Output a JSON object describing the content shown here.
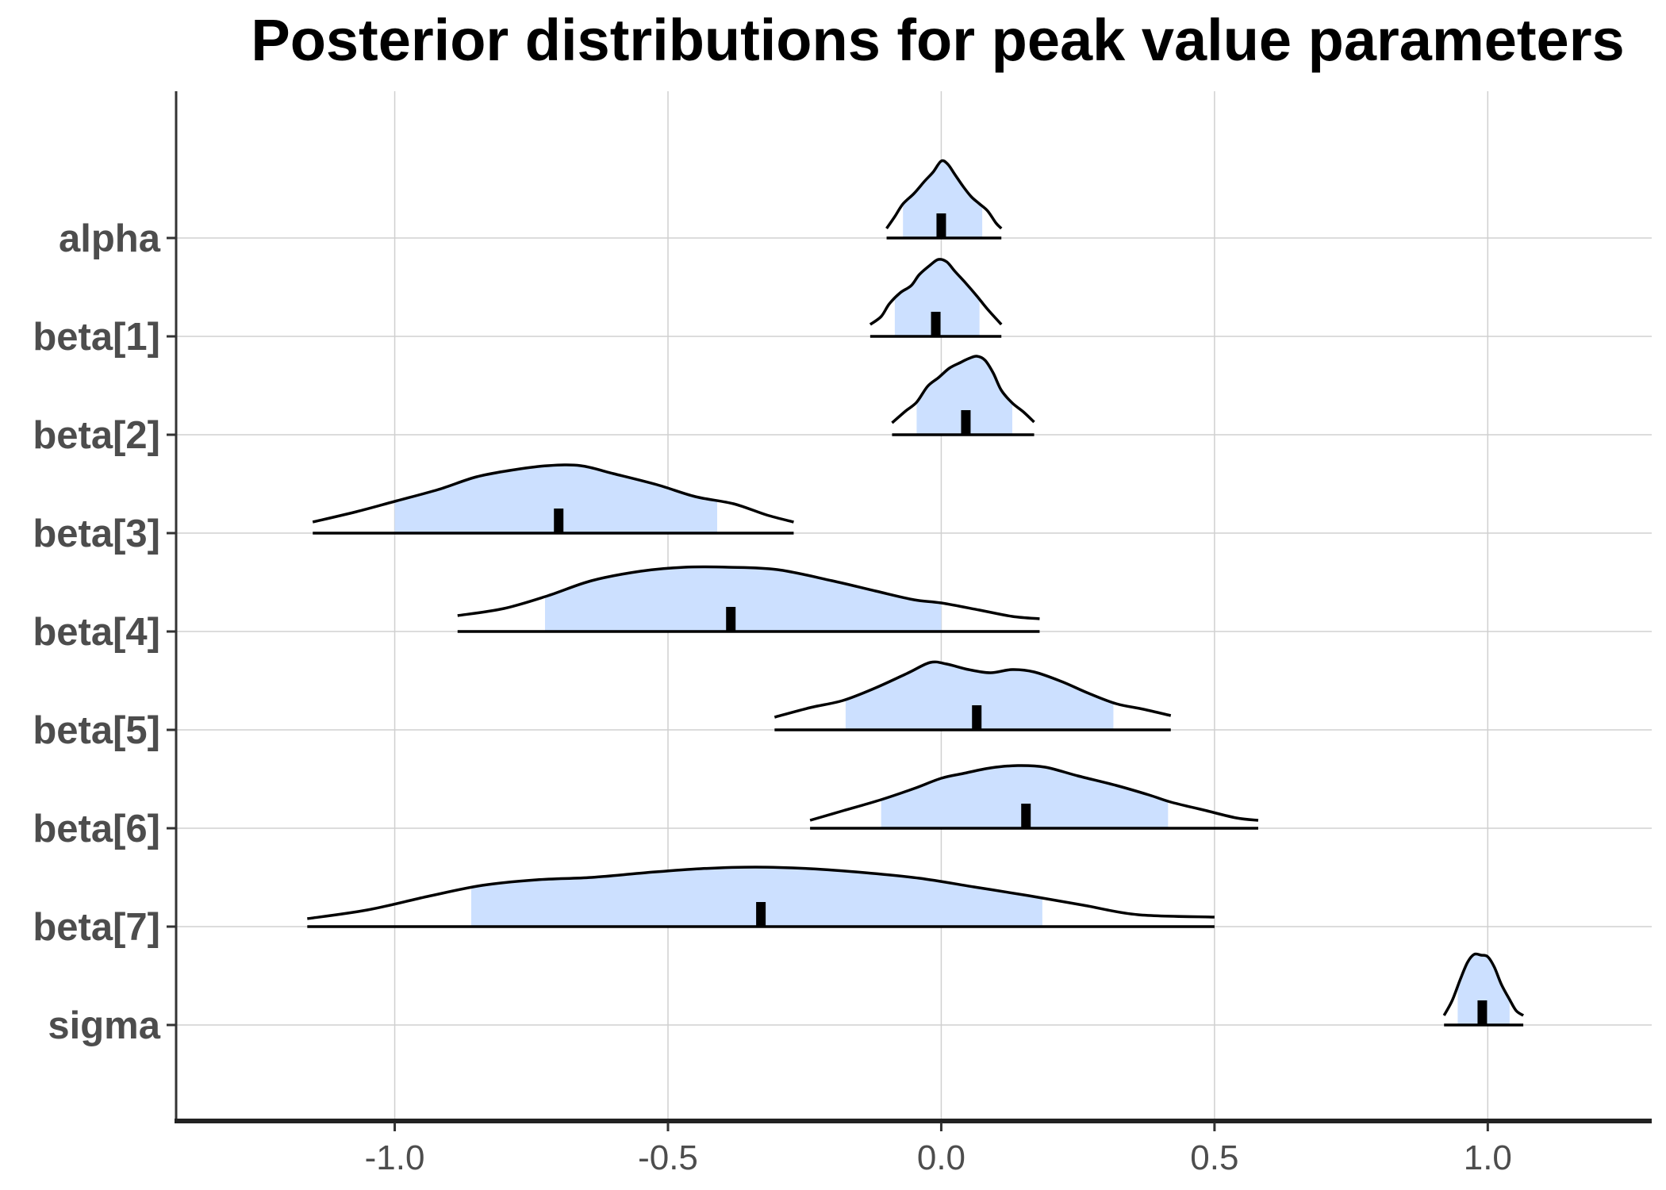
{
  "chart_data": {
    "type": "ridgeline-density",
    "title": "Posterior distributions for peak value parameters",
    "xlabel": "",
    "ylabel": "",
    "xlim": [
      -1.4,
      1.3
    ],
    "x_ticks": [
      -1.0,
      -0.5,
      0.0,
      0.5,
      1.0
    ],
    "x_tick_labels": [
      "-1.0",
      "-0.5",
      "0.0",
      "0.5",
      "1.0"
    ],
    "grid": true,
    "fill_color": "#cce0ff",
    "line_color": "#000000",
    "median_color": "#000000",
    "series": [
      {
        "name": "alpha",
        "median": 0.0,
        "inner": [
          -0.07,
          0.075
        ],
        "outer": [
          -0.1,
          0.11
        ],
        "density_x": [
          -0.1,
          -0.085,
          -0.07,
          -0.05,
          -0.03,
          -0.015,
          0.0,
          0.012,
          0.025,
          0.04,
          0.055,
          0.07,
          0.085,
          0.1,
          0.11
        ],
        "density_y": [
          0.12,
          0.27,
          0.43,
          0.56,
          0.72,
          0.83,
          0.97,
          0.93,
          0.8,
          0.65,
          0.52,
          0.43,
          0.34,
          0.19,
          0.12
        ]
      },
      {
        "name": "beta[1]",
        "median": -0.01,
        "inner": [
          -0.085,
          0.07
        ],
        "outer": [
          -0.13,
          0.11
        ],
        "density_x": [
          -0.13,
          -0.11,
          -0.095,
          -0.075,
          -0.055,
          -0.04,
          -0.02,
          -0.005,
          0.01,
          0.025,
          0.045,
          0.065,
          0.085,
          0.11
        ],
        "density_y": [
          0.15,
          0.25,
          0.41,
          0.55,
          0.64,
          0.78,
          0.9,
          0.97,
          0.94,
          0.82,
          0.67,
          0.51,
          0.34,
          0.15
        ]
      },
      {
        "name": "beta[2]",
        "median": 0.045,
        "inner": [
          -0.045,
          0.13
        ],
        "outer": [
          -0.09,
          0.17
        ],
        "density_x": [
          -0.09,
          -0.065,
          -0.045,
          -0.025,
          -0.005,
          0.015,
          0.035,
          0.05,
          0.065,
          0.08,
          0.095,
          0.11,
          0.13,
          0.15,
          0.17
        ],
        "density_y": [
          0.15,
          0.3,
          0.41,
          0.61,
          0.72,
          0.84,
          0.91,
          0.96,
          0.99,
          0.94,
          0.78,
          0.56,
          0.4,
          0.29,
          0.16
        ]
      },
      {
        "name": "beta[3]",
        "median": -0.7,
        "inner": [
          -1.0,
          -0.41
        ],
        "outer": [
          -1.15,
          -0.27
        ],
        "density_x": [
          -1.15,
          -1.07,
          -1.0,
          -0.92,
          -0.85,
          -0.78,
          -0.72,
          -0.66,
          -0.6,
          -0.52,
          -0.45,
          -0.38,
          -0.32,
          -0.27
        ],
        "density_y": [
          0.14,
          0.27,
          0.4,
          0.55,
          0.71,
          0.8,
          0.85,
          0.85,
          0.75,
          0.61,
          0.46,
          0.37,
          0.23,
          0.14
        ]
      },
      {
        "name": "beta[4]",
        "median": -0.385,
        "inner": [
          -0.725,
          0.0
        ],
        "outer": [
          -0.885,
          0.18
        ],
        "density_x": [
          -0.885,
          -0.8,
          -0.72,
          -0.64,
          -0.55,
          -0.47,
          -0.39,
          -0.3,
          -0.2,
          -0.12,
          -0.05,
          0.0,
          0.07,
          0.13,
          0.18
        ],
        "density_y": [
          0.2,
          0.29,
          0.45,
          0.64,
          0.76,
          0.81,
          0.81,
          0.78,
          0.64,
          0.51,
          0.4,
          0.36,
          0.27,
          0.19,
          0.16
        ]
      },
      {
        "name": "beta[5]",
        "median": 0.065,
        "inner": [
          -0.175,
          0.315
        ],
        "outer": [
          -0.305,
          0.42
        ],
        "density_x": [
          -0.305,
          -0.24,
          -0.18,
          -0.12,
          -0.06,
          -0.02,
          0.01,
          0.05,
          0.09,
          0.13,
          0.17,
          0.22,
          0.27,
          0.32,
          0.37,
          0.42
        ],
        "density_y": [
          0.16,
          0.28,
          0.37,
          0.53,
          0.72,
          0.85,
          0.83,
          0.76,
          0.72,
          0.76,
          0.73,
          0.61,
          0.46,
          0.33,
          0.26,
          0.18
        ]
      },
      {
        "name": "beta[6]",
        "median": 0.155,
        "inner": [
          -0.11,
          0.415
        ],
        "outer": [
          -0.24,
          0.58
        ],
        "density_x": [
          -0.24,
          -0.18,
          -0.11,
          -0.05,
          0.0,
          0.04,
          0.09,
          0.14,
          0.19,
          0.25,
          0.32,
          0.38,
          0.42,
          0.48,
          0.54,
          0.58
        ],
        "density_y": [
          0.1,
          0.22,
          0.36,
          0.5,
          0.63,
          0.69,
          0.76,
          0.79,
          0.77,
          0.66,
          0.54,
          0.42,
          0.33,
          0.23,
          0.13,
          0.1
        ]
      },
      {
        "name": "beta[7]",
        "median": -0.33,
        "inner": [
          -0.86,
          0.185
        ],
        "outer": [
          -1.16,
          0.5
        ],
        "density_x": [
          -1.16,
          -1.05,
          -0.94,
          -0.84,
          -0.74,
          -0.64,
          -0.54,
          -0.44,
          -0.34,
          -0.24,
          -0.14,
          -0.04,
          0.06,
          0.16,
          0.26,
          0.36,
          0.5
        ],
        "density_y": [
          0.1,
          0.21,
          0.38,
          0.52,
          0.59,
          0.62,
          0.68,
          0.73,
          0.75,
          0.73,
          0.68,
          0.61,
          0.5,
          0.39,
          0.27,
          0.15,
          0.12
        ]
      },
      {
        "name": "sigma",
        "median": 0.99,
        "inner": [
          0.945,
          1.04
        ],
        "outer": [
          0.92,
          1.065
        ],
        "density_x": [
          0.92,
          0.935,
          0.95,
          0.963,
          0.975,
          0.988,
          1.0,
          1.012,
          1.025,
          1.04,
          1.052,
          1.065
        ],
        "density_y": [
          0.12,
          0.31,
          0.58,
          0.79,
          0.89,
          0.88,
          0.86,
          0.73,
          0.51,
          0.32,
          0.18,
          0.12
        ]
      }
    ]
  }
}
